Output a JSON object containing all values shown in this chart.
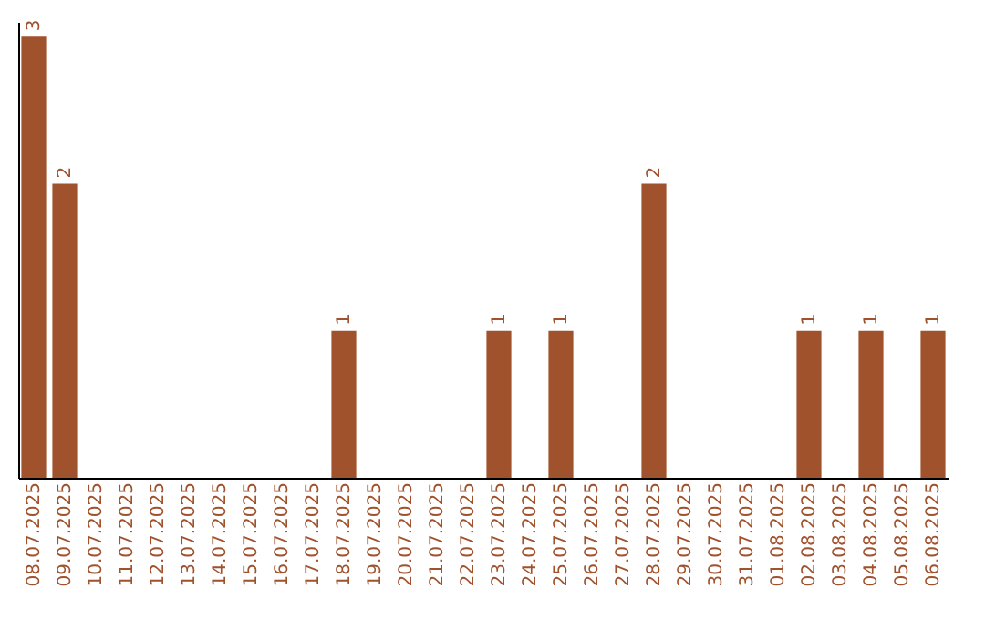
{
  "chart_data": {
    "type": "bar",
    "categories": [
      "08.07.2025",
      "09.07.2025",
      "10.07.2025",
      "11.07.2025",
      "12.07.2025",
      "13.07.2025",
      "14.07.2025",
      "15.07.2025",
      "16.07.2025",
      "17.07.2025",
      "18.07.2025",
      "19.07.2025",
      "20.07.2025",
      "21.07.2025",
      "22.07.2025",
      "23.07.2025",
      "24.07.2025",
      "25.07.2025",
      "26.07.2025",
      "27.07.2025",
      "28.07.2025",
      "29.07.2025",
      "30.07.2025",
      "31.07.2025",
      "01.08.2025",
      "02.08.2025",
      "03.08.2025",
      "04.08.2025",
      "05.08.2025",
      "06.08.2025"
    ],
    "values": [
      3,
      2,
      0,
      0,
      0,
      0,
      0,
      0,
      0,
      0,
      1,
      0,
      0,
      0,
      0,
      1,
      0,
      1,
      0,
      0,
      2,
      0,
      0,
      0,
      0,
      1,
      0,
      1,
      0,
      1
    ],
    "value_labels": [
      "3",
      "2",
      null,
      null,
      null,
      null,
      null,
      null,
      null,
      null,
      "1",
      null,
      null,
      null,
      null,
      "1",
      null,
      "1",
      null,
      null,
      "2",
      null,
      null,
      null,
      null,
      "1",
      null,
      "1",
      null,
      "1"
    ],
    "color": "#a0522d",
    "ylim": [
      0,
      3.1
    ],
    "grid": false,
    "tick_labels": "x"
  }
}
